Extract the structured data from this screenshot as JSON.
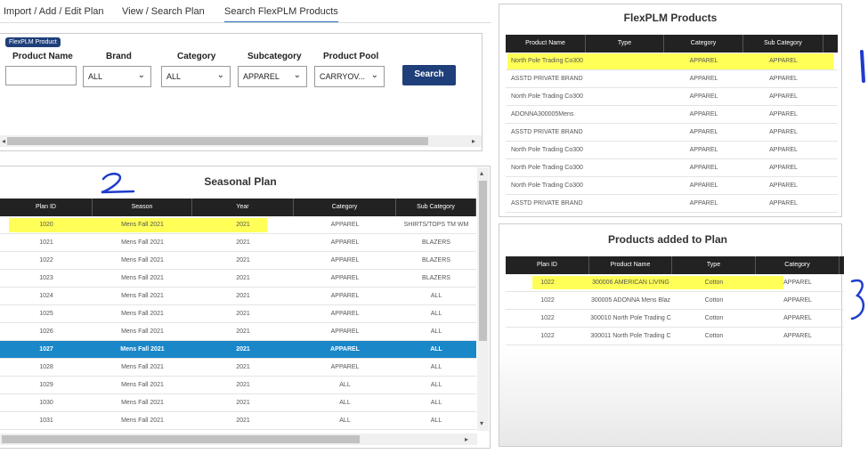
{
  "tabs": [
    {
      "label": "Import / Add / Edit Plan"
    },
    {
      "label": "View / Search Plan"
    },
    {
      "label": "Search FlexPLM Products"
    }
  ],
  "search": {
    "badge": "FlexPLM Product",
    "fields": [
      {
        "label": "Product Name",
        "value": ""
      },
      {
        "label": "Brand",
        "value": "ALL"
      },
      {
        "label": "Category",
        "value": "ALL"
      },
      {
        "label": "Subcategory",
        "value": "APPAREL"
      },
      {
        "label": "Product Pool",
        "value": "CARRYOV..."
      }
    ],
    "button": "Search"
  },
  "seasonal": {
    "title": "Seasonal Plan",
    "columns": [
      "Plan ID",
      "Season",
      "Year",
      "Category",
      "Sub Category"
    ],
    "rows": [
      [
        "1020",
        "Mens Fall 2021",
        "2021",
        "APPAREL",
        "SHIRTS/TOPS TM WM"
      ],
      [
        "1021",
        "Mens Fall 2021",
        "2021",
        "APPAREL",
        "BLAZERS"
      ],
      [
        "1022",
        "Mens Fall 2021",
        "2021",
        "APPAREL",
        "BLAZERS"
      ],
      [
        "1023",
        "Mens Fall 2021",
        "2021",
        "APPAREL",
        "BLAZERS"
      ],
      [
        "1024",
        "Mens Fall 2021",
        "2021",
        "APPAREL",
        "ALL"
      ],
      [
        "1025",
        "Mens Fall 2021",
        "2021",
        "APPAREL",
        "ALL"
      ],
      [
        "1026",
        "Mens Fall 2021",
        "2021",
        "APPAREL",
        "ALL"
      ],
      [
        "1027",
        "Mens Fall 2021",
        "2021",
        "APPAREL",
        "ALL"
      ],
      [
        "1028",
        "Mens Fall 2021",
        "2021",
        "APPAREL",
        "ALL"
      ],
      [
        "1029",
        "Mens Fall 2021",
        "2021",
        "ALL",
        "ALL"
      ],
      [
        "1030",
        "Mens Fall 2021",
        "2021",
        "ALL",
        "ALL"
      ],
      [
        "1031",
        "Mens Fall 2021",
        "2021",
        "ALL",
        "ALL"
      ]
    ]
  },
  "flexplm": {
    "title": "FlexPLM Products",
    "columns": [
      "Product Name",
      "Type",
      "Category",
      "Sub Category"
    ],
    "rows": [
      [
        "North Pole Trading Co300",
        "",
        "APPAREL",
        "APPAREL"
      ],
      [
        "ASSTD PRIVATE BRAND",
        "",
        "APPAREL",
        "APPAREL"
      ],
      [
        "North Pole Trading Co300",
        "",
        "APPAREL",
        "APPAREL"
      ],
      [
        "ADONNA300005Mens",
        "",
        "APPAREL",
        "APPAREL"
      ],
      [
        "ASSTD PRIVATE BRAND",
        "",
        "APPAREL",
        "APPAREL"
      ],
      [
        "North Pole Trading Co300",
        "",
        "APPAREL",
        "APPAREL"
      ],
      [
        "North Pole Trading Co300",
        "",
        "APPAREL",
        "APPAREL"
      ],
      [
        "North Pole Trading Co300",
        "",
        "APPAREL",
        "APPAREL"
      ],
      [
        "ASSTD PRIVATE BRAND",
        "",
        "APPAREL",
        "APPAREL"
      ]
    ]
  },
  "added": {
    "title": "Products added to Plan",
    "columns": [
      "Plan ID",
      "Product Name",
      "Type",
      "Category"
    ],
    "rows": [
      [
        "1022",
        "300006 AMERICAN LIVING",
        "Cotton",
        "APPAREL"
      ],
      [
        "1022",
        "300005 ADONNA Mens Blaz",
        "Cotton",
        "APPAREL"
      ],
      [
        "1022",
        "300010 North Pole Trading C",
        "Cotton",
        "APPAREL"
      ],
      [
        "1022",
        "300011 North Pole Trading C",
        "Cotton",
        "APPAREL"
      ]
    ]
  },
  "annotations": [
    "1",
    "2",
    "3"
  ],
  "colors": {
    "accent": "#1f3f7a",
    "selected_row": "#1a87c9",
    "highlight": "#ffff3a",
    "annotation": "#1e3ccc"
  }
}
